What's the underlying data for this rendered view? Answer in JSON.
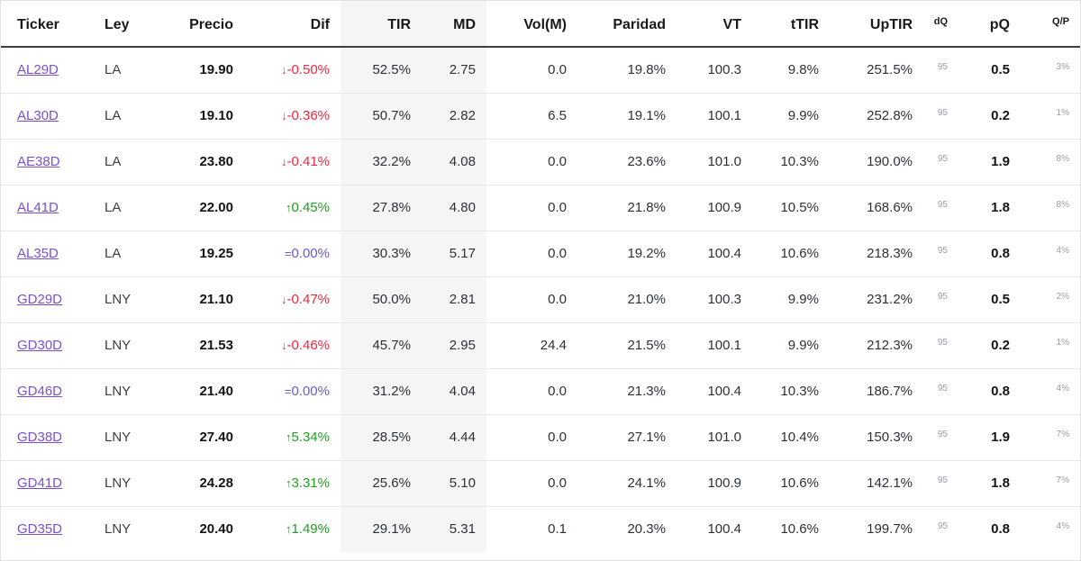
{
  "colors": {
    "negative": "#f0263c",
    "positive": "#1fa01f",
    "neutral": "#6a5acd",
    "ticker_link": "#7a4fd0",
    "band_background": "#f5f5f6"
  },
  "table": {
    "columns": [
      {
        "key": "ticker",
        "label": "Ticker",
        "align": "left",
        "small": false
      },
      {
        "key": "ley",
        "label": "Ley",
        "align": "left",
        "small": false
      },
      {
        "key": "precio",
        "label": "Precio",
        "align": "right",
        "small": false
      },
      {
        "key": "dif",
        "label": "Dif",
        "align": "right",
        "small": false
      },
      {
        "key": "tir",
        "label": "TIR",
        "align": "right",
        "small": false
      },
      {
        "key": "md",
        "label": "MD",
        "align": "right",
        "small": false
      },
      {
        "key": "vol",
        "label": "Vol(M)",
        "align": "right",
        "small": false
      },
      {
        "key": "paridad",
        "label": "Paridad",
        "align": "right",
        "small": false
      },
      {
        "key": "vt",
        "label": "VT",
        "align": "right",
        "small": false
      },
      {
        "key": "ttir",
        "label": "tTIR",
        "align": "right",
        "small": false
      },
      {
        "key": "uptir",
        "label": "UpTIR",
        "align": "right",
        "small": false
      },
      {
        "key": "dq",
        "label": "dQ",
        "align": "right",
        "small": true
      },
      {
        "key": "pq",
        "label": "pQ",
        "align": "right",
        "small": false
      },
      {
        "key": "qp",
        "label": "Q/P",
        "align": "right",
        "small": true
      }
    ],
    "rows": [
      {
        "ticker": "AL29D",
        "ley": "LA",
        "precio": "19.90",
        "dif": {
          "dir": "down",
          "symbol": "↓",
          "value": "-0.50%"
        },
        "tir": "52.5%",
        "md": "2.75",
        "vol": "0.0",
        "paridad": "19.8%",
        "vt": "100.3",
        "ttir": "9.8%",
        "uptir": "251.5%",
        "dq": "95",
        "pq": "0.5",
        "qp": "3%"
      },
      {
        "ticker": "AL30D",
        "ley": "LA",
        "precio": "19.10",
        "dif": {
          "dir": "down",
          "symbol": "↓",
          "value": "-0.36%"
        },
        "tir": "50.7%",
        "md": "2.82",
        "vol": "6.5",
        "paridad": "19.1%",
        "vt": "100.1",
        "ttir": "9.9%",
        "uptir": "252.8%",
        "dq": "95",
        "pq": "0.2",
        "qp": "1%"
      },
      {
        "ticker": "AE38D",
        "ley": "LA",
        "precio": "23.80",
        "dif": {
          "dir": "down",
          "symbol": "↓",
          "value": "-0.41%"
        },
        "tir": "32.2%",
        "md": "4.08",
        "vol": "0.0",
        "paridad": "23.6%",
        "vt": "101.0",
        "ttir": "10.3%",
        "uptir": "190.0%",
        "dq": "95",
        "pq": "1.9",
        "qp": "8%"
      },
      {
        "ticker": "AL41D",
        "ley": "LA",
        "precio": "22.00",
        "dif": {
          "dir": "up",
          "symbol": "↑",
          "value": "0.45%"
        },
        "tir": "27.8%",
        "md": "4.80",
        "vol": "0.0",
        "paridad": "21.8%",
        "vt": "100.9",
        "ttir": "10.5%",
        "uptir": "168.6%",
        "dq": "95",
        "pq": "1.8",
        "qp": "8%"
      },
      {
        "ticker": "AL35D",
        "ley": "LA",
        "precio": "19.25",
        "dif": {
          "dir": "flat",
          "symbol": "=",
          "value": "0.00%"
        },
        "tir": "30.3%",
        "md": "5.17",
        "vol": "0.0",
        "paridad": "19.2%",
        "vt": "100.4",
        "ttir": "10.6%",
        "uptir": "218.3%",
        "dq": "95",
        "pq": "0.8",
        "qp": "4%"
      },
      {
        "ticker": "GD29D",
        "ley": "LNY",
        "precio": "21.10",
        "dif": {
          "dir": "down",
          "symbol": "↓",
          "value": "-0.47%"
        },
        "tir": "50.0%",
        "md": "2.81",
        "vol": "0.0",
        "paridad": "21.0%",
        "vt": "100.3",
        "ttir": "9.9%",
        "uptir": "231.2%",
        "dq": "95",
        "pq": "0.5",
        "qp": "2%"
      },
      {
        "ticker": "GD30D",
        "ley": "LNY",
        "precio": "21.53",
        "dif": {
          "dir": "down",
          "symbol": "↓",
          "value": "-0.46%"
        },
        "tir": "45.7%",
        "md": "2.95",
        "vol": "24.4",
        "paridad": "21.5%",
        "vt": "100.1",
        "ttir": "9.9%",
        "uptir": "212.3%",
        "dq": "95",
        "pq": "0.2",
        "qp": "1%"
      },
      {
        "ticker": "GD46D",
        "ley": "LNY",
        "precio": "21.40",
        "dif": {
          "dir": "flat",
          "symbol": "=",
          "value": "0.00%"
        },
        "tir": "31.2%",
        "md": "4.04",
        "vol": "0.0",
        "paridad": "21.3%",
        "vt": "100.4",
        "ttir": "10.3%",
        "uptir": "186.7%",
        "dq": "95",
        "pq": "0.8",
        "qp": "4%"
      },
      {
        "ticker": "GD38D",
        "ley": "LNY",
        "precio": "27.40",
        "dif": {
          "dir": "up",
          "symbol": "↑",
          "value": "5.34%"
        },
        "tir": "28.5%",
        "md": "4.44",
        "vol": "0.0",
        "paridad": "27.1%",
        "vt": "101.0",
        "ttir": "10.4%",
        "uptir": "150.3%",
        "dq": "95",
        "pq": "1.9",
        "qp": "7%"
      },
      {
        "ticker": "GD41D",
        "ley": "LNY",
        "precio": "24.28",
        "dif": {
          "dir": "up",
          "symbol": "↑",
          "value": "3.31%"
        },
        "tir": "25.6%",
        "md": "5.10",
        "vol": "0.0",
        "paridad": "24.1%",
        "vt": "100.9",
        "ttir": "10.6%",
        "uptir": "142.1%",
        "dq": "95",
        "pq": "1.8",
        "qp": "7%"
      },
      {
        "ticker": "GD35D",
        "ley": "LNY",
        "precio": "20.40",
        "dif": {
          "dir": "up",
          "symbol": "↑",
          "value": "1.49%"
        },
        "tir": "29.1%",
        "md": "5.31",
        "vol": "0.1",
        "paridad": "20.3%",
        "vt": "100.4",
        "ttir": "10.6%",
        "uptir": "199.7%",
        "dq": "95",
        "pq": "0.8",
        "qp": "4%"
      }
    ]
  }
}
